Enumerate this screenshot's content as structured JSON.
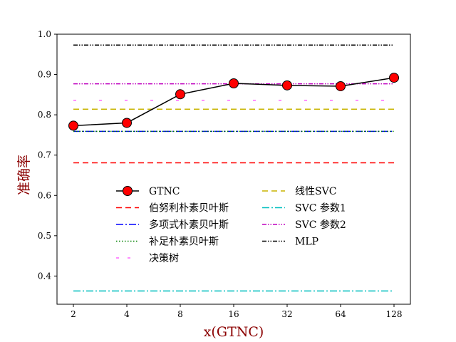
{
  "chart_data": {
    "type": "line",
    "xlabel": "x(GTNC)",
    "ylabel": "准确率",
    "categories": [
      "2",
      "4",
      "8",
      "16",
      "32",
      "64",
      "128"
    ],
    "ylim": [
      0.33,
      1.0
    ],
    "yticks": [
      "0.4",
      "0.5",
      "0.6",
      "0.7",
      "0.8",
      "0.9",
      "1.0"
    ],
    "grid": false,
    "legend_placement": "lower-center",
    "series": [
      {
        "name": "GTNC",
        "kind": "markers-line",
        "color": "#000000",
        "marker_color": "#ff0000",
        "values": [
          0.773,
          0.78,
          0.851,
          0.878,
          0.873,
          0.871,
          0.892
        ]
      },
      {
        "name": "伯努利朴素贝叶斯",
        "kind": "hline",
        "color": "#ff0000",
        "dash": "dashed",
        "value": 0.681
      },
      {
        "name": "多项式朴素贝叶斯",
        "kind": "hline",
        "color": "#0000ff",
        "dash": "dashdot",
        "value": 0.759
      },
      {
        "name": "补足朴素贝叶斯",
        "kind": "hline",
        "color": "#008000",
        "dash": "dotted",
        "value": 0.759
      },
      {
        "name": "决策树",
        "kind": "hline",
        "color": "#ff66ff",
        "dash": "sparse",
        "value": 0.836
      },
      {
        "name": "线性SVC",
        "kind": "hline",
        "color": "#c8b400",
        "dash": "dashed",
        "value": 0.814
      },
      {
        "name": "SVC 参数1",
        "kind": "hline",
        "color": "#00bfbf",
        "dash": "dashdot",
        "value": 0.363
      },
      {
        "name": "SVC 参数2",
        "kind": "hline",
        "color": "#bf00bf",
        "dash": "dashdotdot",
        "value": 0.877
      },
      {
        "name": "MLP",
        "kind": "hline",
        "color": "#000000",
        "dash": "dashdotdot",
        "value": 0.973
      }
    ]
  }
}
